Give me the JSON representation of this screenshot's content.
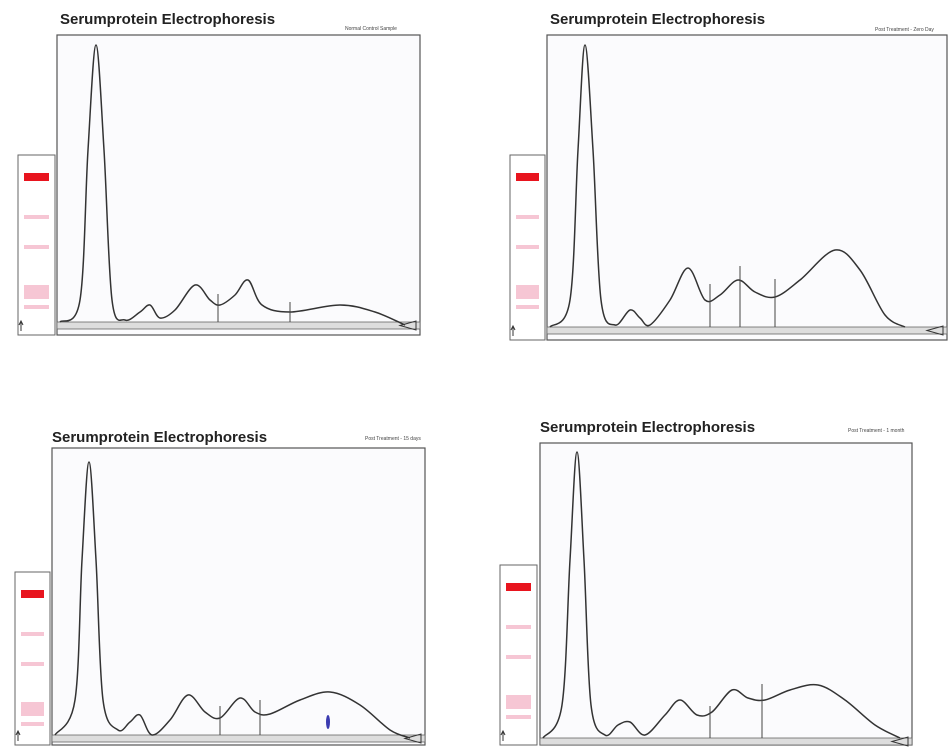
{
  "panels": [
    {
      "title": "Serumprotein Electrophoresis",
      "subtitle": "Normal Control Sample"
    },
    {
      "title": "Serumprotein Electrophoresis",
      "subtitle": "Post Treatment - Zero Day"
    },
    {
      "title": "Serumprotein Electrophoresis",
      "subtitle": "Post Treatment - 15 days"
    },
    {
      "title": "Serumprotein Electrophoresis",
      "subtitle": "Post Treatment - 1 month"
    }
  ]
}
